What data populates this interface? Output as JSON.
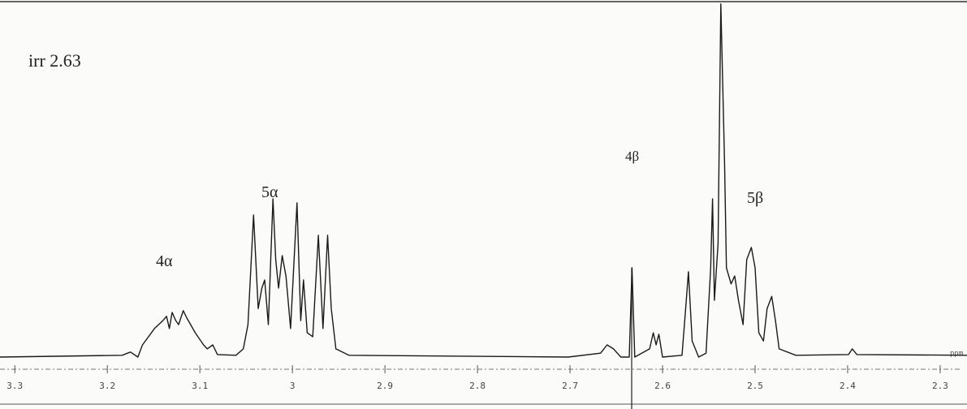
{
  "chart_data": {
    "type": "line",
    "annotations": [
      "irr 2.63",
      "4α",
      "5α",
      "4β",
      "5β"
    ],
    "xlabel": "ppm",
    "color": "#1a1a1a",
    "xlim": [
      3.316,
      2.271
    ],
    "ylim": [
      0,
      100
    ],
    "xticks": [
      3.3,
      3.2,
      3.1,
      3.0,
      2.9,
      2.8,
      2.7,
      2.6,
      2.5,
      2.4,
      2.3
    ],
    "x": [
      3.316,
      3.184,
      3.175,
      3.167,
      3.162,
      3.149,
      3.14,
      3.136,
      3.133,
      3.13,
      3.126,
      3.123,
      3.118,
      3.114,
      3.105,
      3.096,
      3.092,
      3.086,
      3.081,
      3.061,
      3.053,
      3.048,
      3.042,
      3.037,
      3.033,
      3.03,
      3.026,
      3.021,
      3.018,
      3.015,
      3.011,
      3.007,
      3.002,
      2.995,
      2.991,
      2.988,
      2.984,
      2.978,
      2.972,
      2.967,
      2.962,
      2.958,
      2.953,
      2.939,
      2.702,
      2.667,
      2.66,
      2.653,
      2.645,
      2.636,
      2.633,
      2.63,
      2.614,
      2.61,
      2.607,
      2.604,
      2.6,
      2.579,
      2.575,
      2.572,
      2.568,
      2.561,
      2.553,
      2.548,
      2.546,
      2.544,
      2.54,
      2.537,
      2.533,
      2.531,
      2.526,
      2.522,
      2.518,
      2.513,
      2.509,
      2.504,
      2.5,
      2.496,
      2.491,
      2.487,
      2.482,
      2.478,
      2.474,
      2.456,
      2.399,
      2.395,
      2.39,
      2.271
    ],
    "values": [
      0,
      0.5,
      1.4,
      0,
      3.4,
      8,
      10.2,
      11.4,
      8,
      12.5,
      10.2,
      9.1,
      13,
      10.9,
      6.8,
      3.4,
      2.3,
      3.4,
      0.7,
      0.5,
      2.3,
      9.1,
      39.8,
      13.6,
      19.3,
      21.6,
      9.1,
      44.3,
      27.3,
      19.3,
      28.4,
      22.7,
      8,
      43.2,
      10.2,
      21.6,
      6.8,
      5.7,
      34.1,
      8,
      34.1,
      13.6,
      2.3,
      0.5,
      0,
      1.1,
      3.4,
      2.3,
      0,
      0,
      25,
      0,
      2.3,
      6.8,
      3.4,
      6.4,
      0,
      0.5,
      13.6,
      23.9,
      4.5,
      0,
      1.1,
      25,
      44.3,
      15.9,
      31.8,
      98.9,
      54.5,
      25,
      20.5,
      22.7,
      15.9,
      9.1,
      27.3,
      30.7,
      25,
      6.8,
      4.5,
      13.6,
      17,
      10.2,
      2.3,
      0.5,
      0.7,
      2.3,
      0.7,
      0.5
    ]
  }
}
